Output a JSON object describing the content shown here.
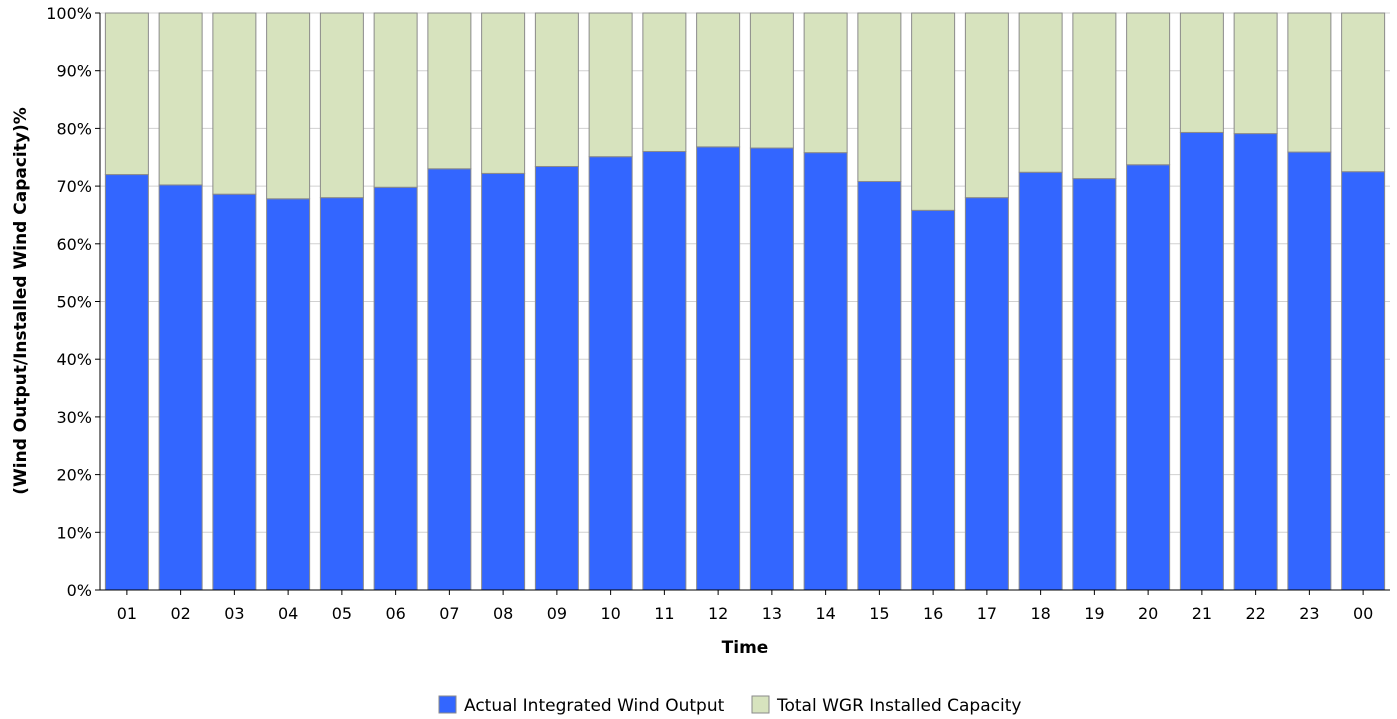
{
  "colors": {
    "actual": "#3366ff",
    "capacity": "#d7e3be",
    "bar_stroke": "#8a8a8a",
    "grid": "#d0d0d0",
    "axis": "#000000"
  },
  "chart_data": {
    "type": "bar",
    "stacked": true,
    "xlabel": "Time",
    "ylabel": "(Wind Output/Installed Wind Capacity)%",
    "ylim": [
      0,
      100
    ],
    "yticks": [
      "0%",
      "10%",
      "20%",
      "30%",
      "40%",
      "50%",
      "60%",
      "70%",
      "80%",
      "90%",
      "100%"
    ],
    "grid": true,
    "legend_position": "bottom",
    "categories": [
      "01",
      "02",
      "03",
      "04",
      "05",
      "06",
      "07",
      "08",
      "09",
      "10",
      "11",
      "12",
      "13",
      "14",
      "15",
      "16",
      "17",
      "18",
      "19",
      "20",
      "21",
      "22",
      "23",
      "00"
    ],
    "series": [
      {
        "name": "Actual Integrated Wind Output",
        "color": "#3366ff",
        "values": [
          72.0,
          70.2,
          68.6,
          67.8,
          68.0,
          69.8,
          73.0,
          72.2,
          73.4,
          75.1,
          76.0,
          76.8,
          76.6,
          75.8,
          70.8,
          65.8,
          68.0,
          72.4,
          71.3,
          73.7,
          79.3,
          79.1,
          75.9,
          72.5
        ]
      },
      {
        "name": "Total WGR Installed Capacity",
        "color": "#d7e3be",
        "values": [
          28.0,
          29.8,
          31.4,
          32.2,
          32.0,
          30.2,
          27.0,
          27.8,
          26.6,
          24.9,
          24.0,
          23.2,
          23.4,
          24.2,
          29.2,
          34.2,
          32.0,
          27.6,
          28.7,
          26.3,
          20.7,
          20.9,
          24.1,
          27.5
        ]
      }
    ]
  }
}
